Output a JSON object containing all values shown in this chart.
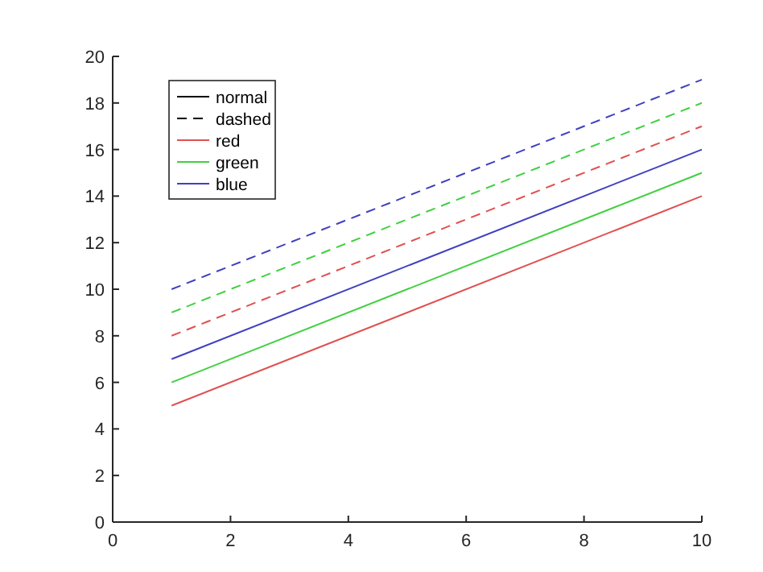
{
  "chart_data": {
    "type": "line",
    "x": [
      1,
      10
    ],
    "xlim": [
      0,
      10
    ],
    "ylim": [
      0,
      20
    ],
    "xticks": [
      0,
      2,
      4,
      6,
      8,
      10
    ],
    "yticks": [
      0,
      2,
      4,
      6,
      8,
      10,
      12,
      14,
      16,
      18,
      20
    ],
    "grid": false,
    "legend": "top left",
    "line_style": "solid",
    "series": [
      {
        "name": "normal",
        "color": "#000000",
        "values": [
          null,
          null
        ]
      },
      {
        "name": "dashed",
        "color": "#000000",
        "line_style": "dashed",
        "values": [
          null,
          null
        ]
      },
      {
        "name": "red",
        "color": "#e05050",
        "values": [
          5,
          14
        ]
      },
      {
        "name": "green",
        "color": "#40d040",
        "values": [
          6,
          15
        ]
      },
      {
        "name": "blue",
        "color": "#4040c0",
        "values": [
          7,
          16
        ]
      },
      {
        "color": "#e05050",
        "line_style": "dashed",
        "values": [
          8,
          17
        ]
      },
      {
        "color": "#40d040",
        "line_style": "dashed",
        "values": [
          9,
          18
        ]
      },
      {
        "color": "#4040c0",
        "line_style": "dashed",
        "values": [
          10,
          19
        ]
      }
    ]
  }
}
